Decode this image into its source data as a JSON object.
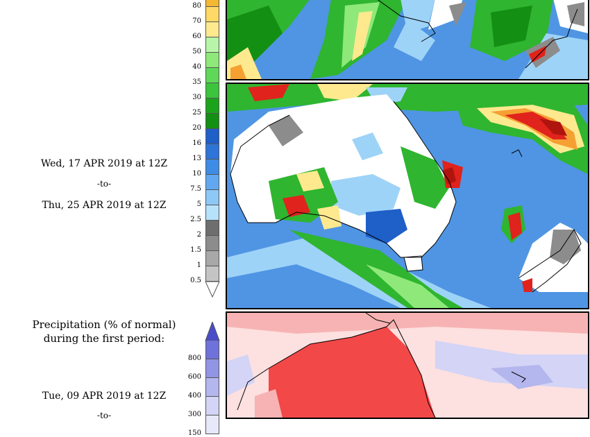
{
  "colorbar_amount": {
    "levels": [
      {
        "label": "80",
        "color": "#f5b833"
      },
      {
        "label": "70",
        "color": "#ffd966"
      },
      {
        "label": "60",
        "color": "#ffe98f"
      },
      {
        "label": "50",
        "color": "#b8f5a8"
      },
      {
        "label": "40",
        "color": "#8fe87a"
      },
      {
        "label": "35",
        "color": "#5fd85a"
      },
      {
        "label": "30",
        "color": "#3cc43c"
      },
      {
        "label": "25",
        "color": "#1ca31c"
      },
      {
        "label": "20",
        "color": "#138f13"
      },
      {
        "label": "16",
        "color": "#1e5fc8"
      },
      {
        "label": "13",
        "color": "#2f74d8"
      },
      {
        "label": "10",
        "color": "#3f8ce6"
      },
      {
        "label": "7.5",
        "color": "#62a8f0"
      },
      {
        "label": "5",
        "color": "#8ec8f7"
      },
      {
        "label": "2.5",
        "color": "#b7e2fb"
      },
      {
        "label": "2",
        "color": "#6e6e6e"
      },
      {
        "label": "1.5",
        "color": "#8c8c8c"
      },
      {
        "label": "1",
        "color": "#a8a8a8"
      },
      {
        "label": "0.5",
        "color": "#c4c4c4"
      }
    ]
  },
  "colorbar_percent": {
    "levels": [
      {
        "label": "800",
        "color": "#6f72db"
      },
      {
        "label": "600",
        "color": "#9294e4"
      },
      {
        "label": "400",
        "color": "#b4b6ee"
      },
      {
        "label": "300",
        "color": "#d3d4f6"
      },
      {
        "label": "150",
        "color": "#e8e8fb"
      }
    ],
    "arrow_color": "#4a4dc8"
  },
  "period_second": {
    "start": "Wed, 17 APR 2019 at 12Z",
    "separator": "-to-",
    "end": "Thu, 25 APR 2019 at 12Z"
  },
  "percent_section": {
    "title_line1": "Precipitation (% of normal)",
    "title_line2": "during the first period:",
    "start": "Tue, 09 APR 2019 at 12Z",
    "separator": "-to-"
  },
  "map_colors": {
    "ocean_blue": "#4f95e3",
    "deep_blue": "#1e5fc8",
    "light_blue": "#9ed3f8",
    "green": "#2fb52f",
    "dark_green": "#138f13",
    "light_green": "#8fe87a",
    "yellow": "#ffe98f",
    "orange": "#f5a033",
    "red": "#e0231c",
    "dark_red": "#b0140f",
    "gray": "#8c8c8c",
    "land_white": "#ffffff",
    "pct_red": "#f24848",
    "pct_pink": "#f7b3b3",
    "pct_lavender": "#d3d4f6"
  }
}
